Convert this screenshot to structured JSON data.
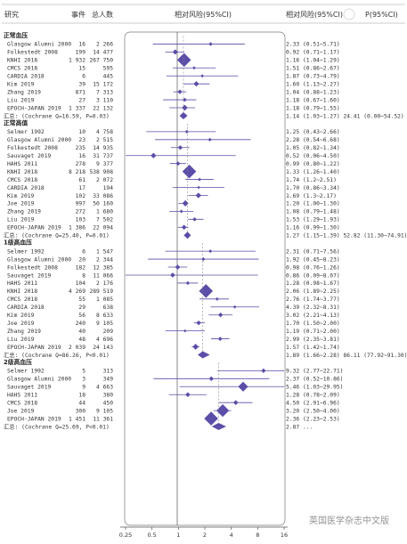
{
  "header": {
    "study": "研究",
    "events": "事件",
    "total": "总人数",
    "plot_title": "相对风险(95%CI)",
    "rr_col": "相对风险(95%CI)",
    "p_col": "P(95%CI)"
  },
  "axis": {
    "scale": "log2",
    "ticks": [
      "0.25",
      "0.5",
      "1",
      "2",
      "4",
      "8",
      "16"
    ],
    "range": [
      0.25,
      16
    ]
  },
  "watermark": "英国医学杂志中文版",
  "colors": {
    "marker": "#5b4ea8",
    "ci_line": "#5b4ea8",
    "text": "#333333",
    "grid": "#888888"
  },
  "chart_data": {
    "type": "forest",
    "groups": [
      {
        "title": "正常血压",
        "studies": [
          {
            "name": "Glasgow Alumni 2000",
            "events": "16",
            "total": "2 266",
            "rr": 2.33,
            "lo": 0.51,
            "hi": 5.71,
            "text": "2.33 (0.51~5.71)"
          },
          {
            "name": "Folkestedt 2008",
            "events": "199",
            "total": "14 477",
            "rr": 0.92,
            "lo": 0.71,
            "hi": 1.17,
            "text": "0.92 (0.71~1.17)"
          },
          {
            "name": "KNHI 2018",
            "events": "1 932",
            "total": "267 750",
            "rr": 1.16,
            "lo": 1.04,
            "hi": 1.29,
            "text": "1.16 (1.04~1.29)"
          },
          {
            "name": "CMCS 2018",
            "events": "15",
            "total": "595",
            "rr": 1.51,
            "lo": 0.86,
            "hi": 2.67,
            "text": "1.51 (0.86~2.67)"
          },
          {
            "name": "CARDIA 2018",
            "events": "6",
            "total": "445",
            "rr": 1.87,
            "lo": 0.73,
            "hi": 4.79,
            "text": "1.87 (0.73~4.79)"
          },
          {
            "name": "Kim 2019",
            "events": "39",
            "total": "15 172",
            "rr": 1.6,
            "lo": 1.13,
            "hi": 2.27,
            "text": "1.60 (1.13~2.27)"
          },
          {
            "name": "Zhang 2019",
            "events": "871",
            "total": "7 313",
            "rr": 1.04,
            "lo": 0.88,
            "hi": 1.23,
            "text": "1.04 (0.88~1.23)"
          },
          {
            "name": "Liu 2019",
            "events": "27",
            "total": "3 110",
            "rr": 1.18,
            "lo": 0.67,
            "hi": 1.6,
            "text": "1.18 (0.67~1.60)"
          },
          {
            "name": "EPOCH-JAPAN 2019",
            "events": "1 337",
            "total": "22 132",
            "rr": 1.18,
            "lo": 0.79,
            "hi": 1.55,
            "text": "1.18 (0.79~1.55)"
          }
        ],
        "summary": {
          "label": "汇总: (Cochrane Q=16.59, P=0.03)",
          "rr": 1.14,
          "lo": 1.03,
          "hi": 1.27,
          "text": "1.14 (1.03~1.27) 24.41 (0.00~54.52)"
        }
      },
      {
        "title": "正常高值",
        "studies": [
          {
            "name": "Selmer 1992",
            "events": "10",
            "total": "4 758",
            "rr": 1.25,
            "lo": 0.43,
            "hi": 2.66,
            "text": "1.25 (0.43~2.66)"
          },
          {
            "name": "Glasgow Alumni 2000",
            "events": "23",
            "total": "2 515",
            "rr": 2.28,
            "lo": 0.54,
            "hi": 6.68,
            "text": "2.28 (0.54~6.68)"
          },
          {
            "name": "Folkestedt 2008",
            "events": "235",
            "total": "14 935",
            "rr": 1.05,
            "lo": 0.82,
            "hi": 1.34,
            "text": "1.05 (0.82~1.34)"
          },
          {
            "name": "Sauvaget 2019",
            "events": "16",
            "total": "31 737",
            "rr": 0.52,
            "lo": 0.06,
            "hi": 4.5,
            "text": "0.52 (0.06~4.50)"
          },
          {
            "name": "HAHS 2011",
            "events": "278",
            "total": "9 377",
            "rr": 0.99,
            "lo": 0.8,
            "hi": 1.22,
            "text": "0.99 (0.80~1.22)"
          },
          {
            "name": "KNHI 2018",
            "events": "8 218",
            "total": "538 908",
            "rr": 1.33,
            "lo": 1.26,
            "hi": 1.4,
            "text": "1.33 (1.26~1.40)"
          },
          {
            "name": "CMCS 2018",
            "events": "61",
            "total": "2 072",
            "rr": 1.74,
            "lo": 1.2,
            "hi": 2.51,
            "text": "1.74 (1.2~2.51)"
          },
          {
            "name": "CARDIA 2018",
            "events": "17",
            "total": "194",
            "rr": 1.7,
            "lo": 0.86,
            "hi": 3.34,
            "text": "1.70 (0.86~3.34)"
          },
          {
            "name": "Kim 2019",
            "events": "102",
            "total": "33 086",
            "rr": 1.69,
            "lo": 1.3,
            "hi": 2.17,
            "text": "1.69 (1.3~2.17)"
          },
          {
            "name": "Joe 2019",
            "events": "997",
            "total": "50 160",
            "rr": 1.2,
            "lo": 1.0,
            "hi": 1.3,
            "text": "1.20 (1.00~1.30)"
          },
          {
            "name": "Zhang 2019",
            "events": "272",
            "total": "1 680",
            "rr": 1.08,
            "lo": 0.79,
            "hi": 1.48,
            "text": "1.08 (0.79~1.48)"
          },
          {
            "name": "Liu 2019",
            "events": "103",
            "total": "7 502",
            "rr": 1.53,
            "lo": 1.29,
            "hi": 1.93,
            "text": "1.53 (1.29~1.93)"
          },
          {
            "name": "EPOCH-JAPAN 2019",
            "events": "1 386",
            "total": "22 094",
            "rr": 1.16,
            "lo": 0.99,
            "hi": 1.3,
            "text": "1.16 (0.99~1.30)"
          }
        ],
        "summary": {
          "label": "汇总: (Cochrane Q=25.40, P=0.01)",
          "rr": 1.27,
          "lo": 1.15,
          "hi": 1.39,
          "text": "1.27 (1.15~1.39) 52.82 (11.30~74.91)"
        }
      },
      {
        "title": "1级高血压",
        "studies": [
          {
            "name": "Selmer 1992",
            "events": "6",
            "total": "1 547",
            "rr": 2.31,
            "lo": 0.71,
            "hi": 7.56,
            "text": "2.31 (0.71~7.56)"
          },
          {
            "name": "Glasgow Alumni 2000",
            "events": "20",
            "total": "2 344",
            "rr": 1.92,
            "lo": 0.45,
            "hi": 8.23,
            "text": "1.92 (0.45~8.23)"
          },
          {
            "name": "Folkestedt 2008",
            "events": "182",
            "total": "12 385",
            "rr": 0.98,
            "lo": 0.76,
            "hi": 1.26,
            "text": "0.98 (0.76~1.26)"
          },
          {
            "name": "Sauvaget 2019",
            "events": "8",
            "total": "11 066",
            "rr": 0.86,
            "lo": 0.09,
            "hi": 8.07,
            "text": "0.86 (0.09~8.07)"
          },
          {
            "name": "HAHS 2011",
            "events": "104",
            "total": "2 176",
            "rr": 1.28,
            "lo": 0.98,
            "hi": 1.67,
            "text": "1.28 (0.98~1.67)"
          },
          {
            "name": "KNHI 2018",
            "events": "4 269",
            "total": "289 519",
            "rr": 2.06,
            "lo": 1.89,
            "hi": 2.25,
            "text": "2.06 (1.89~2.25)"
          },
          {
            "name": "CMCS 2018",
            "events": "55",
            "total": "1 085",
            "rr": 2.76,
            "lo": 1.74,
            "hi": 3.77,
            "text": "2.76 (1.74~3.77)"
          },
          {
            "name": "CARDIA 2018",
            "events": "29",
            "total": "638",
            "rr": 4.39,
            "lo": 2.32,
            "hi": 8.31,
            "text": "4.39 (2.32~8.31)"
          },
          {
            "name": "Kim 2019",
            "events": "56",
            "total": "8 633",
            "rr": 3.02,
            "lo": 2.21,
            "hi": 4.13,
            "text": "3.02 (2.21~4.13)"
          },
          {
            "name": "Joe 2019",
            "events": "240",
            "total": "9 105",
            "rr": 1.7,
            "lo": 1.5,
            "hi": 2.0,
            "text": "1.70 (1.50~2.00)"
          },
          {
            "name": "Zhang 2019",
            "events": "40",
            "total": "209",
            "rr": 1.19,
            "lo": 0.71,
            "hi": 2.0,
            "text": "1.19 (0.71~2.00)"
          },
          {
            "name": "Liu 2019",
            "events": "48",
            "total": "4 696",
            "rr": 2.99,
            "lo": 2.35,
            "hi": 3.81,
            "text": "2.99 (2.35~3.81)"
          },
          {
            "name": "EPOCH-JAPAN 2019",
            "events": "2 039",
            "total": "24 143",
            "rr": 1.57,
            "lo": 1.42,
            "hi": 1.74,
            "text": "1.57 (1.42~1.74)"
          }
        ],
        "summary": {
          "label": "汇总: (Cochrane Q=86.26, P<0.01)",
          "rr": 1.89,
          "lo": 1.66,
          "hi": 2.28,
          "text": "1.89 (1.66~2.28) 86.11 (77.92~91.30)"
        }
      },
      {
        "title": "2级高血压",
        "studies": [
          {
            "name": "Selmer 1992",
            "events": "5",
            "total": "313",
            "rr": 9.32,
            "lo": 2.77,
            "hi": 22.71,
            "text": "9.32 (2.77~22.71)"
          },
          {
            "name": "Glasgow Alumni 2000",
            "events": "3",
            "total": "349",
            "rr": 2.37,
            "lo": 0.52,
            "hi": 10.86,
            "text": "2.37 (0.52~10.86)"
          },
          {
            "name": "Sauvaget 2019",
            "events": "9",
            "total": "4 663",
            "rr": 5.46,
            "lo": 1.03,
            "hi": 29.95,
            "text": "5.46 (1.03~29.95)"
          },
          {
            "name": "HAHS 2011",
            "events": "18",
            "total": "380",
            "rr": 1.28,
            "lo": 0.78,
            "hi": 2.09,
            "text": "1.28 (0.78~2.09)"
          },
          {
            "name": "CMCS 2018",
            "events": "44",
            "total": "450",
            "rr": 4.5,
            "lo": 2.91,
            "hi": 6.96,
            "text": "4.50 (2.91~6.96)"
          },
          {
            "name": "Joe 2019",
            "events": "300",
            "total": "9 105",
            "rr": 3.2,
            "lo": 2.5,
            "hi": 4.0,
            "text": "3.20 (2.50~4.00)"
          },
          {
            "name": "EPOCH-JAPAN 2019",
            "events": "1 451",
            "total": "11 361",
            "rr": 2.36,
            "lo": 2.23,
            "hi": 2.53,
            "text": "2.36 (2.23~2.53)"
          }
        ],
        "summary": {
          "label": "汇总: (Cochrane Q=25.69, P<0.01)",
          "rr": 2.87,
          "lo": 2.4,
          "hi": 3.5,
          "text": "2.87 ..."
        }
      }
    ]
  }
}
